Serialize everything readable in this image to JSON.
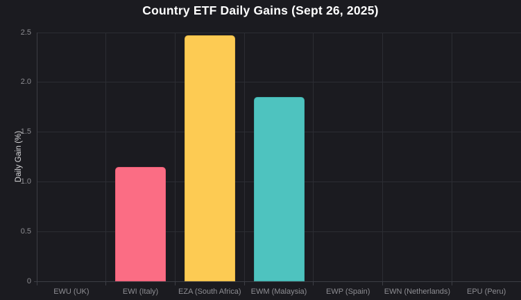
{
  "chart_data": {
    "type": "bar",
    "title": "Country ETF Daily Gains (Sept 26, 2025)",
    "xlabel": "",
    "ylabel": "Daily Gain (%)",
    "categories": [
      "EWU (UK)",
      "EWI (Italy)",
      "EZA (South Africa)",
      "EWM (Malaysia)",
      "EWP (Spain)",
      "EWN (Netherlands)",
      "EPU (Peru)"
    ],
    "values": [
      0,
      1.15,
      2.47,
      1.85,
      0,
      0,
      0
    ],
    "bar_colors": [
      null,
      "#fb6d84",
      "#fdcb53",
      "#4ec3bf",
      null,
      null,
      null
    ],
    "bar_border_colors": [
      null,
      "#ee5d76",
      "#eab945",
      "#40b1ad",
      null,
      null,
      null
    ],
    "ylim": [
      0,
      2.5
    ],
    "yticks": [
      0,
      0.5,
      1.0,
      1.5,
      2.0,
      2.5
    ],
    "ytick_labels": [
      "0",
      "0.5",
      "1.0",
      "1.5",
      "2.0",
      "2.5"
    ],
    "grid": true,
    "legend": false
  },
  "colors": {
    "background": "#1b1b20",
    "gridline": "#2c2d33",
    "axis_line": "#3d3e45",
    "title_text": "#ffffff",
    "tick_text": "#8e8e93",
    "axis_label_text": "#d9d9db"
  }
}
